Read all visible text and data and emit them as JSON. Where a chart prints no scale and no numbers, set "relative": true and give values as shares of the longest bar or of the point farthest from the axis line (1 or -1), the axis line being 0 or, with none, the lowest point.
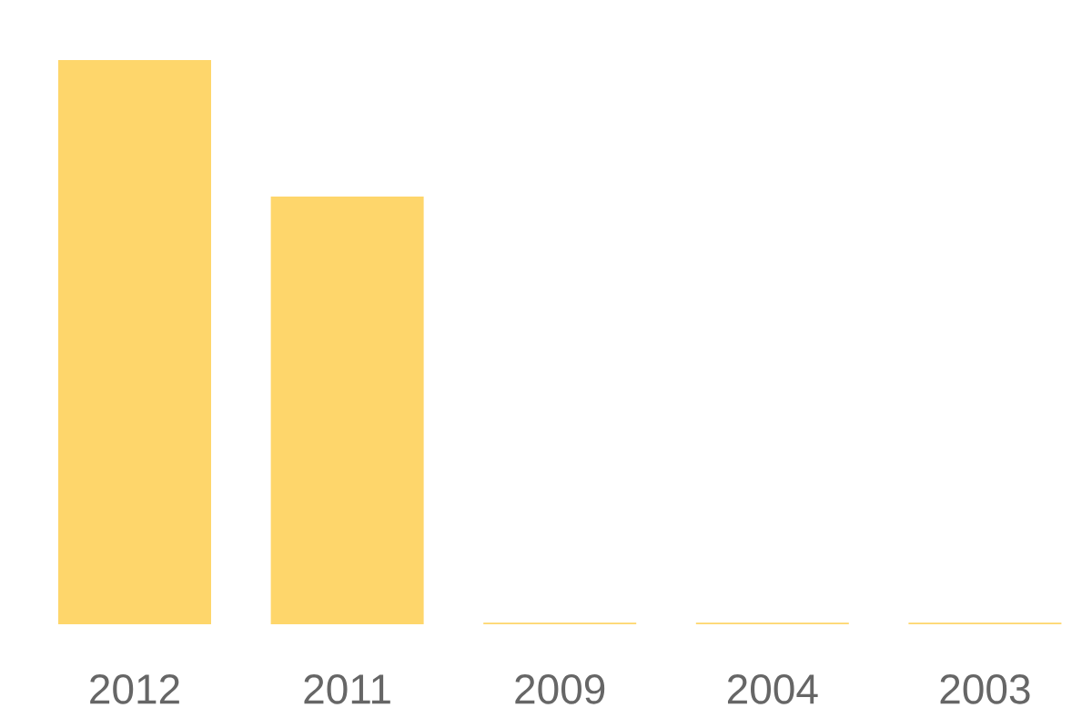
{
  "chart_data": {
    "type": "bar",
    "relative": true,
    "color": "#fed66b",
    "categories": [
      "2012",
      "2011",
      "2009",
      "2004",
      "2003"
    ],
    "values": [
      1,
      0.758,
      0.003,
      0.003,
      0.003
    ]
  }
}
